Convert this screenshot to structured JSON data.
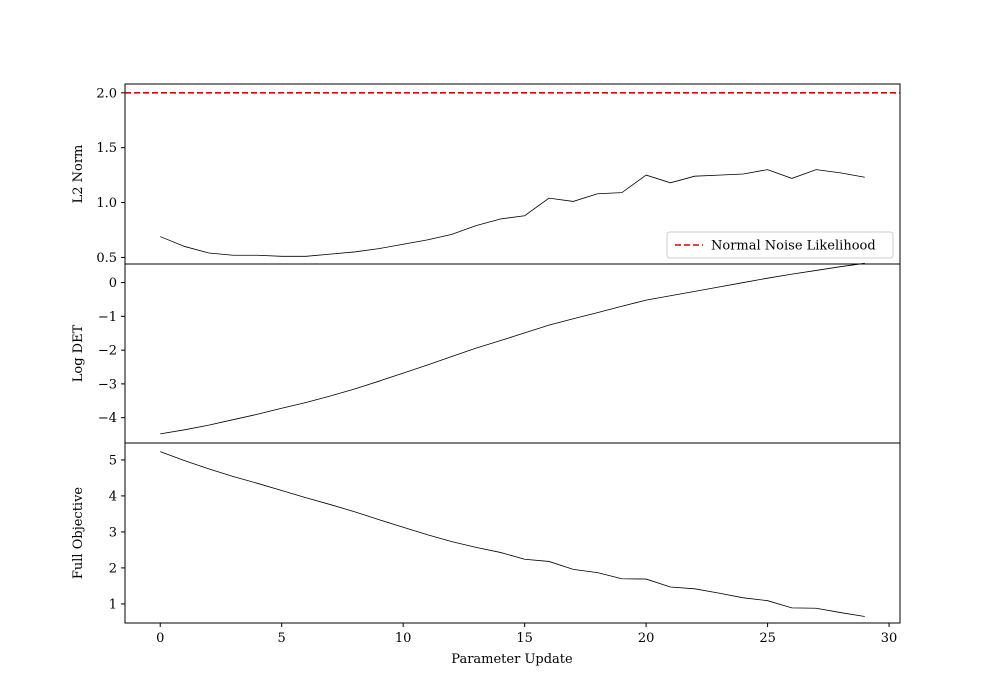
{
  "chart_data": {
    "type": "line",
    "xlabel": "Parameter Update",
    "xlim": [
      -1.45,
      30.45
    ],
    "xticks": [
      0,
      5,
      10,
      15,
      20,
      25,
      30
    ],
    "x": [
      0,
      1,
      2,
      3,
      4,
      5,
      6,
      7,
      8,
      9,
      10,
      11,
      12,
      13,
      14,
      15,
      16,
      17,
      18,
      19,
      20,
      21,
      22,
      23,
      24,
      25,
      26,
      27,
      28,
      29
    ],
    "panels": [
      {
        "ylabel": "L2 Norm",
        "ylim": [
          0.44,
          2.08
        ],
        "yticks": [
          0.5,
          1.0,
          1.5,
          2.0
        ],
        "ytick_labels": [
          "0.5",
          "1.0",
          "1.5",
          "2.0"
        ],
        "series": [
          {
            "color": "#000000",
            "values": [
              0.69,
              0.6,
              0.54,
              0.52,
              0.52,
              0.51,
              0.51,
              0.53,
              0.55,
              0.58,
              0.62,
              0.66,
              0.71,
              0.79,
              0.85,
              0.88,
              1.04,
              1.01,
              1.08,
              1.09,
              1.25,
              1.18,
              1.24,
              1.25,
              1.26,
              1.3,
              1.22,
              1.3,
              1.27,
              1.23
            ]
          }
        ],
        "reference_line": {
          "y": 2.0,
          "color": "#e00000",
          "style": "dashed",
          "name": "Normal Noise Likelihood"
        },
        "legend": {
          "entries": [
            "Normal Noise Likelihood"
          ],
          "placement": "lower-right"
        }
      },
      {
        "ylabel": "Log DET",
        "ylim": [
          -4.75,
          0.55
        ],
        "yticks": [
          -4,
          -3,
          -2,
          -1,
          0
        ],
        "ytick_labels": [
          "−4",
          "−3",
          "−2",
          "−1",
          "0"
        ],
        "series": [
          {
            "color": "#000000",
            "values": [
              -4.48,
              -4.36,
              -4.22,
              -4.06,
              -3.9,
              -3.72,
              -3.55,
              -3.36,
              -3.15,
              -2.92,
              -2.68,
              -2.44,
              -2.19,
              -1.94,
              -1.72,
              -1.49,
              -1.26,
              -1.07,
              -0.89,
              -0.7,
              -0.52,
              -0.39,
              -0.26,
              -0.13,
              0.0,
              0.13,
              0.25,
              0.36,
              0.47,
              0.57
            ]
          }
        ]
      },
      {
        "ylabel": "Full Objective",
        "ylim": [
          0.47,
          5.47
        ],
        "yticks": [
          1,
          2,
          3,
          4,
          5
        ],
        "ytick_labels": [
          "1",
          "2",
          "3",
          "4",
          "5"
        ],
        "series": [
          {
            "color": "#000000",
            "values": [
              5.23,
              4.98,
              4.75,
              4.54,
              4.35,
              4.15,
              3.95,
              3.76,
              3.56,
              3.34,
              3.13,
              2.92,
              2.73,
              2.57,
              2.43,
              2.24,
              2.18,
              1.96,
              1.87,
              1.7,
              1.69,
              1.47,
              1.42,
              1.3,
              1.17,
              1.09,
              0.89,
              0.88,
              0.76,
              0.65
            ]
          }
        ]
      }
    ]
  }
}
